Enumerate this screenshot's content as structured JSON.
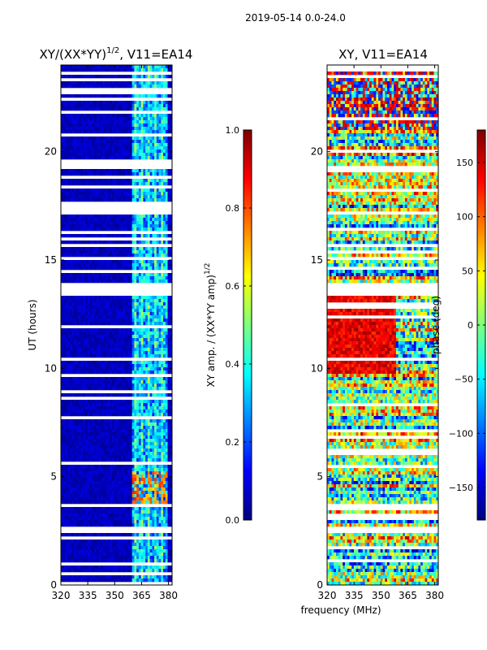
{
  "figure_title": "2019-05-14 0.0-24.0",
  "colors": {
    "jet": [
      "#00007f",
      "#0000ff",
      "#007fff",
      "#00ffff",
      "#7fff7f",
      "#ffff00",
      "#ff7f00",
      "#ff0000",
      "#7f0000"
    ]
  },
  "chart_data": [
    {
      "type": "heatmap",
      "title": "XY/(XX*YY)^1/2, V11=EA14",
      "title_main": "XY/(XX*YY)",
      "title_sup": "1/2",
      "title_tail": ", V11=EA14",
      "xlabel": "frequency (MHz)",
      "ylabel": "UT (hours)",
      "xlim": [
        320,
        382
      ],
      "ylim": [
        0,
        24
      ],
      "xticks": [
        320,
        335,
        350,
        365,
        380
      ],
      "yticks": [
        0,
        5,
        10,
        15,
        20
      ],
      "active_band_mhz": [
        360,
        380
      ],
      "colorbar": {
        "label": "XY amp. / (XX*YY amp)^1/2",
        "label_main": "XY amp. / (XX*YY amp)",
        "label_sup": "1/2",
        "range": [
          0.0,
          1.0
        ],
        "ticks": [
          "0.0",
          "0.2",
          "0.4",
          "0.6",
          "0.8",
          "1.0"
        ],
        "tick_values": [
          0.0,
          0.2,
          0.4,
          0.6,
          0.8,
          1.0
        ]
      }
    },
    {
      "type": "heatmap",
      "title": "XY, V11=EA14",
      "xlabel": "frequency (MHz)",
      "ylabel": "",
      "xlim": [
        320,
        382
      ],
      "ylim": [
        0,
        24
      ],
      "xticks": [
        320,
        335,
        350,
        365,
        380
      ],
      "yticks": [
        0,
        5,
        10,
        15,
        20
      ],
      "colorbar": {
        "label": "phase (deg)",
        "range": [
          -180,
          180
        ],
        "ticks": [
          "150",
          "100",
          "50",
          "0",
          "−50",
          "−100",
          "−150"
        ],
        "tick_values": [
          150,
          100,
          50,
          0,
          -50,
          -100,
          -150
        ]
      }
    }
  ],
  "shared_xlabel": "frequency (MHz)",
  "gaps_hours": [
    [
      2.4,
      2.7
    ],
    [
      3.6,
      3.7
    ],
    [
      13.4,
      14.0
    ],
    [
      15.0,
      15.2
    ]
  ]
}
